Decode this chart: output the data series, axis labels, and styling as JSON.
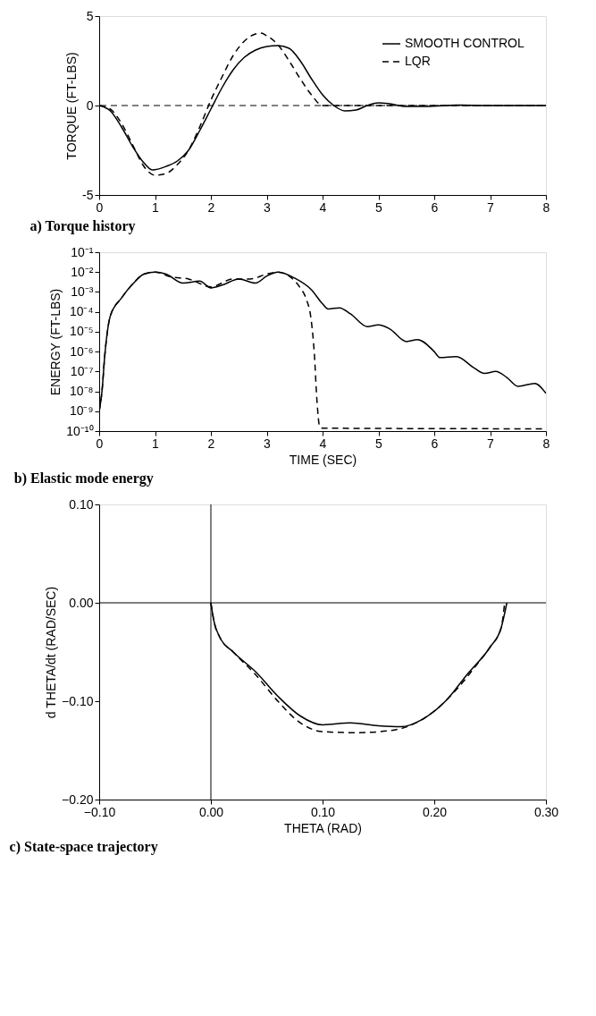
{
  "chart_data": [
    {
      "type": "line",
      "title": "a)  Torque history",
      "ylabel": "TORQUE  (FT-LBS)",
      "xlim": [
        0,
        8
      ],
      "ylim": [
        -5,
        5
      ],
      "xticks": [
        0,
        1,
        2,
        3,
        4,
        5,
        6,
        7,
        8
      ],
      "yticks": [
        -5,
        0,
        5
      ],
      "grid": false,
      "legend": "top right",
      "ref_lines": [
        {
          "axis": "y",
          "value": 0,
          "label": null,
          "color": "#000000",
          "line_style": "dashed"
        }
      ],
      "series": [
        {
          "name": "SMOOTH  CONTROL",
          "color": "#000000",
          "line_style": "solid",
          "x": [
            0,
            0.2,
            0.4,
            0.6,
            0.8,
            0.95,
            1.2,
            1.4,
            1.6,
            1.8,
            2.0,
            2.2,
            2.4,
            2.6,
            2.8,
            3.0,
            3.2,
            3.4,
            3.6,
            3.8,
            4.0,
            4.2,
            4.4,
            4.6,
            4.8,
            5.0,
            5.2,
            5.5,
            5.8,
            6.2,
            6.5,
            7,
            8
          ],
          "values": [
            0,
            -0.3,
            -1.2,
            -2.3,
            -3.2,
            -3.6,
            -3.4,
            -3.1,
            -2.5,
            -1.4,
            -0.2,
            1.0,
            2.0,
            2.7,
            3.1,
            3.3,
            3.35,
            3.2,
            2.5,
            1.5,
            0.6,
            0.0,
            -0.3,
            -0.25,
            0.0,
            0.15,
            0.1,
            -0.05,
            -0.05,
            0.0,
            0.03,
            0,
            0
          ]
        },
        {
          "name": "LQR",
          "color": "#000000",
          "line_style": "dashed",
          "x": [
            0,
            0.2,
            0.4,
            0.6,
            0.8,
            1.0,
            1.2,
            1.4,
            1.6,
            1.8,
            2.0,
            2.2,
            2.4,
            2.6,
            2.8,
            2.9,
            3.0,
            3.2,
            3.4,
            3.6,
            3.8,
            4.0,
            8
          ],
          "values": [
            0,
            -0.2,
            -1.0,
            -2.2,
            -3.4,
            -3.9,
            -3.8,
            -3.3,
            -2.5,
            -1.2,
            0.3,
            1.6,
            2.8,
            3.6,
            4.0,
            4.05,
            3.9,
            3.4,
            2.5,
            1.5,
            0.6,
            0,
            0
          ]
        }
      ]
    },
    {
      "type": "line",
      "title": "b)  Elastic mode energy",
      "xlabel": "TIME  (SEC)",
      "ylabel": "ENERGY  (FT-LBS)",
      "log": "y",
      "xlim": [
        0,
        8
      ],
      "ylim": [
        1e-10,
        0.1
      ],
      "xticks": [
        0,
        1,
        2,
        3,
        4,
        5,
        6,
        7,
        8
      ],
      "yticks": [
        {
          "value": 1e-10,
          "label": "10⁻¹⁰"
        },
        {
          "value": 1e-09,
          "label": "10⁻⁹"
        },
        {
          "value": 1e-08,
          "label": "10⁻⁸"
        },
        {
          "value": 1e-07,
          "label": "10⁻⁷"
        },
        {
          "value": 1e-06,
          "label": "10⁻⁶"
        },
        {
          "value": 1e-05,
          "label": "10⁻⁵"
        },
        {
          "value": 0.0001,
          "label": "10⁻⁴"
        },
        {
          "value": 0.001,
          "label": "10⁻³"
        },
        {
          "value": 0.01,
          "label": "10⁻²"
        },
        {
          "value": 0.1,
          "label": "10⁻¹"
        }
      ],
      "grid": false,
      "series": [
        {
          "color": "#000000",
          "line_style": "solid",
          "x": [
            0,
            0.05,
            0.1,
            0.2,
            0.4,
            0.6,
            0.8,
            1.0,
            1.2,
            1.5,
            1.8,
            2.0,
            2.2,
            2.5,
            2.8,
            3.0,
            3.2,
            3.5,
            3.8,
            4.0,
            4.1,
            4.3,
            4.5,
            4.8,
            5.0,
            5.2,
            5.5,
            5.7,
            6.0,
            6.1,
            6.4,
            6.7,
            6.9,
            7.1,
            7.3,
            7.5,
            7.8,
            8.0
          ],
          "values": [
            1e-09,
            1e-08,
            6.3e-07,
            6.3e-05,
            0.0005,
            0.0025,
            0.0079,
            0.01,
            0.0079,
            0.0028,
            0.0035,
            0.0016,
            0.0022,
            0.0045,
            0.0028,
            0.0063,
            0.01,
            0.005,
            0.0013,
            0.00025,
            0.00014,
            0.00016,
            7.9e-05,
            1.8e-05,
            2.2e-05,
            1.4e-05,
            3.2e-06,
            4e-06,
            1e-06,
            5e-07,
            5.6e-07,
            1.6e-07,
            7.9e-08,
            1e-07,
            5e-08,
            1.8e-08,
            2.5e-08,
            7.9e-09
          ]
        },
        {
          "color": "#000000",
          "line_style": "dashed",
          "x": [
            0,
            0.05,
            0.1,
            0.2,
            0.4,
            0.6,
            0.8,
            1.0,
            1.3,
            1.6,
            2.0,
            2.4,
            2.7,
            3.0,
            3.2,
            3.4,
            3.6,
            3.7,
            3.8,
            3.85,
            3.9,
            3.95,
            4.0,
            8.0
          ],
          "values": [
            1e-09,
            1e-08,
            6.3e-07,
            6.3e-05,
            0.0005,
            0.0025,
            0.0079,
            0.01,
            0.0056,
            0.0045,
            0.0018,
            0.0045,
            0.0045,
            0.0079,
            0.01,
            0.0063,
            0.0016,
            0.0005,
            3.2e-05,
            1e-06,
            3.2e-09,
            1.6e-10,
            1.4e-10,
            1.3e-10
          ]
        }
      ]
    },
    {
      "type": "line",
      "title": "c)  State-space trajectory",
      "xlabel": "THETA  (RAD)",
      "ylabel": "d  THETA/dt  (RAD/SEC)",
      "xlim": [
        -0.1,
        0.3
      ],
      "ylim": [
        -0.2,
        0.1
      ],
      "xticks": [
        {
          "value": -0.1,
          "label": "−0.10"
        },
        {
          "value": 0,
          "label": "0.00"
        },
        {
          "value": 0.1,
          "label": "0.10"
        },
        {
          "value": 0.2,
          "label": "0.20"
        },
        {
          "value": 0.3,
          "label": "0.30"
        }
      ],
      "yticks": [
        {
          "value": -0.2,
          "label": "−0.20"
        },
        {
          "value": -0.1,
          "label": "−0.10"
        },
        {
          "value": 0,
          "label": "0.00"
        },
        {
          "value": 0.1,
          "label": "0.10"
        }
      ],
      "grid": false,
      "ref_lines": [
        {
          "axis": "x",
          "value": 0,
          "label": null,
          "color": "#000000",
          "line_style": "solid"
        },
        {
          "axis": "y",
          "value": 0,
          "label": null,
          "color": "#000000",
          "line_style": "solid"
        }
      ],
      "series": [
        {
          "color": "#000000",
          "line_style": "solid",
          "x": [
            0,
            0.003,
            0.008,
            0.02,
            0.04,
            0.06,
            0.08,
            0.1,
            0.125,
            0.15,
            0.17,
            0.19,
            0.21,
            0.23,
            0.25,
            0.26,
            0.265
          ],
          "values": [
            0,
            -0.02,
            -0.035,
            -0.05,
            -0.07,
            -0.095,
            -0.115,
            -0.124,
            -0.122,
            -0.125,
            -0.126,
            -0.118,
            -0.1,
            -0.072,
            -0.045,
            -0.025,
            0
          ]
        },
        {
          "color": "#000000",
          "line_style": "dashed",
          "x": [
            0,
            0.003,
            0.008,
            0.02,
            0.04,
            0.06,
            0.08,
            0.1,
            0.13,
            0.16,
            0.18,
            0.2,
            0.22,
            0.24,
            0.25,
            0.26,
            0.263
          ],
          "values": [
            0,
            -0.02,
            -0.035,
            -0.05,
            -0.073,
            -0.1,
            -0.122,
            -0.131,
            -0.132,
            -0.13,
            -0.124,
            -0.11,
            -0.088,
            -0.06,
            -0.045,
            -0.025,
            0
          ]
        }
      ]
    }
  ]
}
